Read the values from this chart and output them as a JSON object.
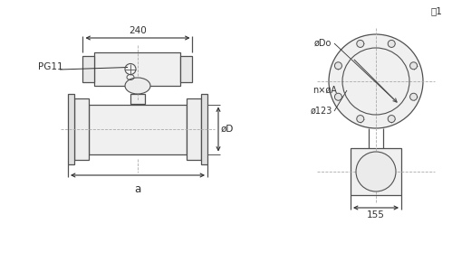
{
  "bg_color": "#ffffff",
  "line_color": "#505050",
  "dim_color": "#303030",
  "fig1_label": "图1",
  "label_240": "240",
  "label_155": "155",
  "label_a": "a",
  "label_D": "øD",
  "label_PG11": "PG11",
  "label_123": "ø123",
  "label_nA": "n×øA",
  "label_Do": "øDo",
  "dashed_color": "#aaaaaa",
  "font_size": 7.5
}
